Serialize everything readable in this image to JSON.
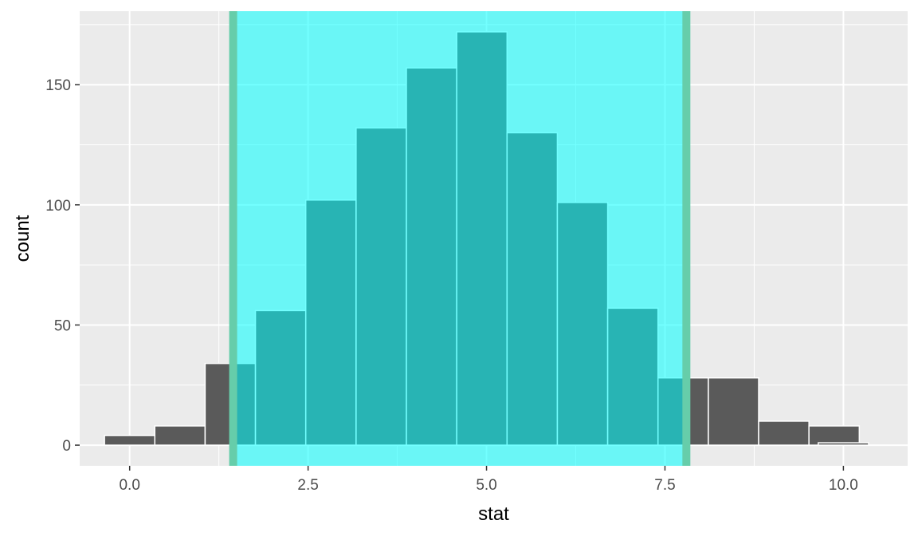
{
  "chart_data": {
    "type": "bar",
    "xlabel": "stat",
    "ylabel": "count",
    "xlim": [
      -0.7,
      10.9
    ],
    "ylim": [
      -8.6,
      180.6
    ],
    "x_ticks": [
      0.0,
      2.5,
      5.0,
      7.5,
      10.0
    ],
    "x_tick_labels": [
      "0.0",
      "2.5",
      "5.0",
      "7.5",
      "10.0"
    ],
    "y_ticks": [
      0,
      50,
      100,
      150
    ],
    "y_tick_labels": [
      "0",
      "50",
      "100",
      "150"
    ],
    "grid": true,
    "bin_width": 0.705,
    "bins": [
      {
        "center": 0.0,
        "count": 4
      },
      {
        "center": 0.705,
        "count": 8
      },
      {
        "center": 1.41,
        "count": 34
      },
      {
        "center": 2.115,
        "count": 56
      },
      {
        "center": 2.82,
        "count": 102
      },
      {
        "center": 3.525,
        "count": 132
      },
      {
        "center": 4.23,
        "count": 157
      },
      {
        "center": 4.935,
        "count": 172
      },
      {
        "center": 5.64,
        "count": 130
      },
      {
        "center": 6.345,
        "count": 101
      },
      {
        "center": 7.05,
        "count": 57
      },
      {
        "center": 7.755,
        "count": 28
      },
      {
        "center": 8.46,
        "count": 28
      },
      {
        "center": 9.165,
        "count": 10
      },
      {
        "center": 9.87,
        "count": 8
      },
      {
        "center": 10.0,
        "count": 1
      }
    ],
    "shaded_interval": [
      1.45,
      7.8
    ],
    "colors": {
      "panel": "#ebebeb",
      "grid": "#ffffff",
      "bar_fill": "#5a5a5a",
      "bar_edge": "#ffffff",
      "shade": "#00ffff",
      "shade_opacity": 0.55,
      "interval_line": "#66cdaa"
    }
  }
}
